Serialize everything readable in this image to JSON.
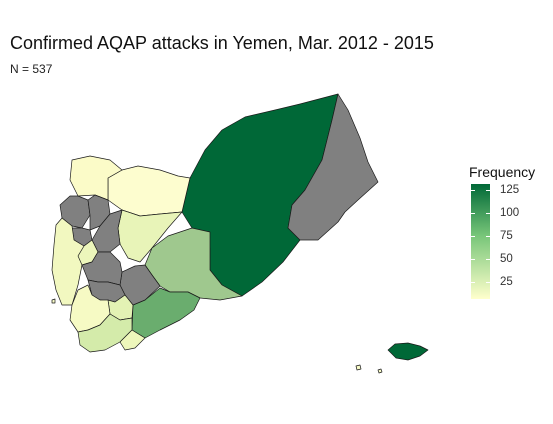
{
  "title": "Confirmed AQAP attacks in Yemen, Mar. 2012 - 2015",
  "subtitle": "N = 537",
  "legend": {
    "title": "Frequency",
    "ticks": [
      "125",
      "100",
      "75",
      "50",
      "25"
    ],
    "tick_values": [
      125,
      100,
      75,
      50,
      25
    ],
    "min": 7,
    "max": 132,
    "gradient_low": "#ffffcc",
    "gradient_mid": "#78c679",
    "gradient_high": "#006837"
  },
  "colors": {
    "no_data": "#808080",
    "border": "#1a1a1a"
  }
}
